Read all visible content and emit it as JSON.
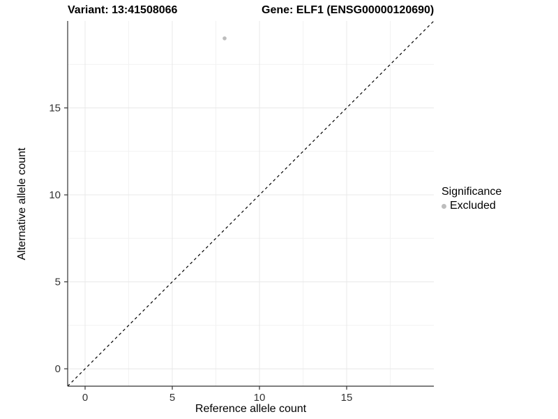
{
  "titles": {
    "left": "Variant: 13:41508066",
    "right": "Gene: ELF1 (ENSG00000120690)"
  },
  "chart_data": {
    "type": "scatter",
    "title_left": "Variant: 13:41508066",
    "title_right": "Gene: ELF1 (ENSG00000120690)",
    "xlabel": "Reference allele count",
    "ylabel": "Alternative allele count",
    "xlim": [
      -1,
      20
    ],
    "ylim": [
      -1,
      20
    ],
    "xticks": [
      0,
      5,
      10,
      15
    ],
    "yticks": [
      0,
      5,
      10,
      15
    ],
    "xticks_minor": [
      2.5,
      7.5,
      12.5,
      17.5
    ],
    "yticks_minor": [
      2.5,
      7.5,
      12.5,
      17.5
    ],
    "grid": true,
    "points": [
      {
        "x": 8,
        "y": 19,
        "significance": "Excluded"
      }
    ],
    "reference_line": {
      "type": "identity",
      "style": "dashed",
      "from": [
        -1,
        -1
      ],
      "to": [
        20,
        20
      ]
    },
    "legend": {
      "position": "right",
      "title": "Significance",
      "entries": [
        {
          "label": "Excluded",
          "color": "#bdbdbd"
        }
      ]
    }
  },
  "colors": {
    "background": "#ffffff",
    "point": "#bdbdbd",
    "grid_major": "#e8e8e8",
    "grid_minor": "#f2f2f2",
    "axis_line": "#333333",
    "tick_text": "#333333",
    "dashed_line": "#000000"
  }
}
